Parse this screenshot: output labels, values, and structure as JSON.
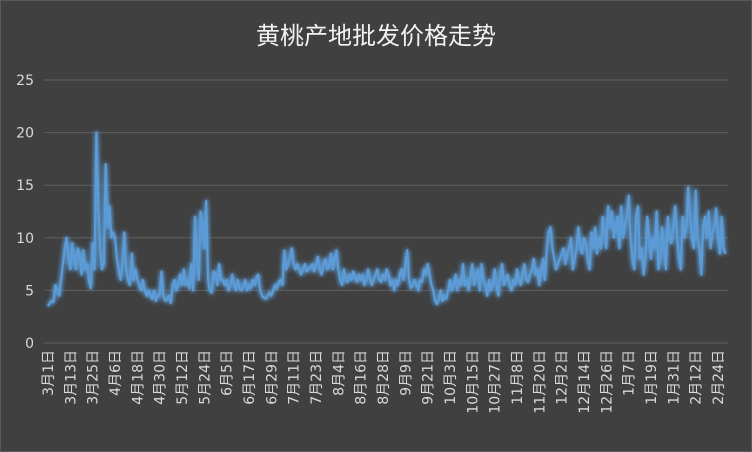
{
  "chart_data": {
    "type": "line",
    "title": "黄桃产地批发价格走势",
    "ylim": [
      0,
      25
    ],
    "yticks": [
      0,
      5,
      10,
      15,
      20,
      25
    ],
    "grid": true,
    "label_every": 12,
    "count": 365,
    "label_texts": [
      "3月1日",
      "3月13日",
      "3月25日",
      "4月6日",
      "4月18日",
      "4月30日",
      "5月12日",
      "5月24日",
      "6月5日",
      "6月17日",
      "6月29日",
      "7月11日",
      "7月23日",
      "8月4日",
      "8月16日",
      "8月28日",
      "9月9日",
      "9月21日",
      "10月3日",
      "10月15日",
      "10月27日",
      "11月8日",
      "11月20日",
      "12月2日",
      "12月14日",
      "12月26日",
      "1月7日",
      "1月19日",
      "1月31日",
      "2月12日",
      "2月24日"
    ],
    "series": [
      {
        "color": "#5b9bd5",
        "values": [
          3.5,
          3.8,
          4,
          3.9,
          5.5,
          5,
          4.5,
          6,
          7.5,
          9,
          10,
          8,
          7,
          9.5,
          8,
          7,
          9,
          8.5,
          6.5,
          8.8,
          7,
          7.5,
          6,
          5.2,
          9.5,
          7,
          20,
          13,
          9,
          7,
          7.5,
          17,
          11,
          13,
          10,
          10.5,
          10,
          8,
          7,
          6,
          7.5,
          10.5,
          7,
          6,
          5.5,
          8.5,
          6,
          7,
          6,
          5.5,
          5,
          6,
          5,
          4.5,
          5,
          4.5,
          4.2,
          5,
          4,
          4.5,
          4.5,
          6.8,
          4.5,
          4,
          4.2,
          4.5,
          3.8,
          5.5,
          6,
          5,
          5.5,
          6.5,
          5.5,
          7,
          5.5,
          6,
          5.2,
          7.5,
          5,
          12,
          8,
          6,
          12.5,
          11,
          9,
          13.5,
          6,
          5,
          4.8,
          6.8,
          6.5,
          5.5,
          7.5,
          6,
          6,
          5.5,
          6,
          5,
          5.5,
          6.5,
          5.5,
          5,
          6,
          5.2,
          5,
          5.5,
          6,
          5,
          5.5,
          5.2,
          6,
          5.5,
          6.2,
          6.5,
          5,
          4.5,
          4.3,
          4.2,
          4.5,
          4.8,
          4.5,
          5,
          5.5,
          5.2,
          5.8,
          6,
          5.5,
          8.8,
          7,
          7.5,
          8,
          9,
          7.5,
          7,
          7.5,
          7,
          6.5,
          7,
          7.5,
          6.8,
          7,
          7.2,
          7.5,
          6.8,
          7.5,
          8.2,
          7,
          6.5,
          7.5,
          8,
          7,
          7.2,
          8.5,
          7,
          8,
          8.8,
          7,
          6,
          5.5,
          7,
          6,
          5.8,
          6.5,
          6,
          6.8,
          6.2,
          5.8,
          6.5,
          6,
          6.5,
          5.5,
          6,
          7,
          6.2,
          5.5,
          6,
          6.5,
          7,
          6,
          5.8,
          6.5,
          6,
          7,
          6.5,
          5.5,
          6,
          5,
          6,
          5.5,
          6.5,
          7,
          6,
          7.5,
          8.8,
          6,
          5.2,
          5.5,
          6,
          5.5,
          5,
          6,
          5.8,
          7,
          6.5,
          7.5,
          6.5,
          5.5,
          5,
          4,
          3.7,
          4.2,
          5,
          4,
          4.5,
          4.2,
          5,
          6,
          5,
          5.5,
          6.5,
          5,
          6,
          5.5,
          7.5,
          5.5,
          6,
          5,
          6.5,
          7.5,
          5.5,
          6.5,
          7,
          5,
          7.5,
          6,
          5.5,
          4.5,
          6,
          5,
          5.5,
          7,
          5.5,
          4.5,
          6.5,
          7.5,
          5.5,
          6,
          6.5,
          5.5,
          5,
          6,
          5.5,
          7,
          6,
          5.5,
          6.5,
          7.5,
          6,
          5.8,
          6.5,
          7,
          8,
          6.5,
          7,
          5.5,
          7,
          8,
          6,
          9,
          10.5,
          11,
          9,
          8,
          7,
          7.5,
          8,
          8.5,
          9,
          7.5,
          8.5,
          9,
          10,
          7,
          8,
          9,
          11,
          9,
          8.5,
          10,
          9.5,
          8,
          7,
          10.5,
          9,
          11,
          8.5,
          10,
          9,
          12,
          10.5,
          9,
          13,
          11,
          12.5,
          10,
          11,
          12,
          9,
          13,
          10,
          11,
          12,
          14,
          10,
          8,
          7,
          12,
          13,
          8,
          9,
          6.5,
          8,
          12,
          10,
          8,
          10,
          9,
          12.5,
          7,
          8,
          11,
          9,
          7,
          12,
          10,
          9.5,
          11,
          13,
          10,
          8,
          7,
          12,
          10,
          11,
          14.8,
          12,
          10,
          9,
          14.5,
          10,
          9,
          6.5,
          11,
          12,
          10,
          12.5,
          9,
          10.5,
          11,
          12.8,
          10,
          8.5,
          12,
          9,
          8.5
        ]
      }
    ]
  }
}
